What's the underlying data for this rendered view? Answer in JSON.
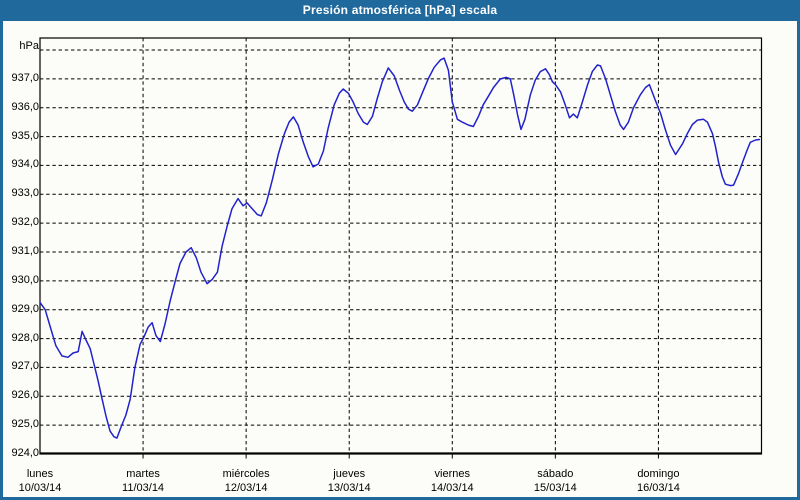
{
  "window": {
    "title": "Presión atmosférica [hPa] escala"
  },
  "colors": {
    "chrome_blue": "#1f699c",
    "page_background": "#fcfdf8",
    "line_blue": "#2222cc",
    "grid_black": "#000000",
    "text_black": "#000000"
  },
  "chart_data": {
    "type": "line",
    "title": "Presión atmosférica [hPa] escala",
    "ylabel": "hPa",
    "grid": "dashed",
    "legend": "none",
    "y_axis": {
      "min": 924,
      "max": 938,
      "gridline_step": 1,
      "unit_label": "hPa",
      "labeled_ticks": [
        "937,0",
        "936,0",
        "935,0",
        "934,0",
        "933,0",
        "932,0",
        "931,0",
        "930,0",
        "929,0",
        "928,0",
        "927,0",
        "926,0",
        "925,0",
        "924,0"
      ]
    },
    "x_axis": {
      "span_hours": 168,
      "hours_origin": "lunes 10/03/14 00:00",
      "days": [
        {
          "name": "lunes",
          "date": "10/03/14"
        },
        {
          "name": "martes",
          "date": "11/03/14"
        },
        {
          "name": "miércoles",
          "date": "12/03/14"
        },
        {
          "name": "jueves",
          "date": "13/03/14"
        },
        {
          "name": "viernes",
          "date": "14/03/14"
        },
        {
          "name": "sábado",
          "date": "15/03/14"
        },
        {
          "name": "domingo",
          "date": "16/03/14"
        }
      ]
    },
    "series": [
      {
        "name": "Presión atmosférica [hPa]",
        "color": "#2222cc",
        "points_hours_hpa": [
          [
            0.0,
            929.25
          ],
          [
            1.2,
            929.0
          ],
          [
            2.3,
            928.45
          ],
          [
            3.7,
            927.75
          ],
          [
            5.1,
            927.4
          ],
          [
            6.5,
            927.35
          ],
          [
            7.7,
            927.5
          ],
          [
            8.9,
            927.55
          ],
          [
            9.8,
            928.25
          ],
          [
            10.7,
            927.95
          ],
          [
            11.7,
            927.65
          ],
          [
            12.6,
            927.1
          ],
          [
            13.5,
            926.55
          ],
          [
            14.4,
            925.95
          ],
          [
            15.4,
            925.3
          ],
          [
            16.3,
            924.8
          ],
          [
            17.2,
            924.6
          ],
          [
            17.9,
            924.55
          ],
          [
            18.9,
            924.95
          ],
          [
            20.0,
            925.35
          ],
          [
            21.0,
            925.9
          ],
          [
            22.1,
            927.0
          ],
          [
            23.3,
            927.8
          ],
          [
            24.2,
            928.05
          ],
          [
            25.2,
            928.4
          ],
          [
            26.1,
            928.55
          ],
          [
            27.0,
            928.1
          ],
          [
            28.0,
            927.9
          ],
          [
            29.1,
            928.5
          ],
          [
            30.3,
            929.3
          ],
          [
            31.5,
            930.0
          ],
          [
            32.6,
            930.6
          ],
          [
            34.0,
            931.0
          ],
          [
            35.2,
            931.15
          ],
          [
            36.4,
            930.8
          ],
          [
            37.5,
            930.3
          ],
          [
            38.9,
            929.9
          ],
          [
            40.1,
            930.05
          ],
          [
            41.3,
            930.3
          ],
          [
            42.4,
            931.2
          ],
          [
            43.6,
            931.9
          ],
          [
            44.7,
            932.5
          ],
          [
            46.1,
            932.85
          ],
          [
            47.3,
            932.6
          ],
          [
            48.2,
            932.7
          ],
          [
            49.4,
            932.5
          ],
          [
            50.6,
            932.3
          ],
          [
            51.5,
            932.25
          ],
          [
            52.7,
            932.7
          ],
          [
            54.1,
            933.5
          ],
          [
            55.5,
            934.4
          ],
          [
            56.9,
            935.1
          ],
          [
            58.0,
            935.5
          ],
          [
            59.0,
            935.68
          ],
          [
            60.1,
            935.4
          ],
          [
            61.3,
            934.8
          ],
          [
            62.5,
            934.3
          ],
          [
            63.6,
            933.95
          ],
          [
            64.8,
            934.05
          ],
          [
            66.0,
            934.5
          ],
          [
            67.1,
            935.3
          ],
          [
            68.5,
            936.1
          ],
          [
            69.7,
            936.5
          ],
          [
            70.6,
            936.65
          ],
          [
            71.8,
            936.5
          ],
          [
            72.9,
            936.2
          ],
          [
            74.1,
            935.8
          ],
          [
            75.3,
            935.5
          ],
          [
            76.2,
            935.42
          ],
          [
            77.4,
            935.7
          ],
          [
            78.5,
            936.3
          ],
          [
            79.7,
            936.9
          ],
          [
            81.1,
            937.38
          ],
          [
            82.5,
            937.1
          ],
          [
            83.7,
            936.6
          ],
          [
            84.8,
            936.2
          ],
          [
            85.8,
            935.95
          ],
          [
            86.7,
            935.88
          ],
          [
            87.9,
            936.1
          ],
          [
            89.0,
            936.5
          ],
          [
            90.4,
            937.0
          ],
          [
            91.8,
            937.4
          ],
          [
            93.2,
            937.65
          ],
          [
            94.1,
            937.72
          ],
          [
            95.1,
            937.3
          ],
          [
            96.0,
            936.2
          ],
          [
            97.2,
            935.6
          ],
          [
            98.3,
            935.5
          ],
          [
            99.7,
            935.4
          ],
          [
            100.9,
            935.35
          ],
          [
            102.1,
            935.7
          ],
          [
            103.2,
            936.1
          ],
          [
            104.4,
            936.4
          ],
          [
            105.6,
            936.7
          ],
          [
            107.2,
            937.0
          ],
          [
            108.6,
            937.05
          ],
          [
            109.5,
            937.0
          ],
          [
            110.3,
            936.45
          ],
          [
            111.2,
            935.75
          ],
          [
            112.0,
            935.25
          ],
          [
            112.9,
            935.6
          ],
          [
            114.2,
            936.45
          ],
          [
            115.3,
            936.95
          ],
          [
            116.5,
            937.25
          ],
          [
            117.7,
            937.35
          ],
          [
            118.6,
            937.15
          ],
          [
            119.3,
            936.9
          ],
          [
            120.0,
            936.8
          ],
          [
            121.2,
            936.55
          ],
          [
            122.3,
            936.1
          ],
          [
            123.3,
            935.65
          ],
          [
            124.2,
            935.78
          ],
          [
            125.1,
            935.65
          ],
          [
            126.3,
            936.2
          ],
          [
            127.5,
            936.8
          ],
          [
            128.6,
            937.25
          ],
          [
            129.8,
            937.48
          ],
          [
            130.5,
            937.45
          ],
          [
            131.7,
            937.0
          ],
          [
            132.8,
            936.45
          ],
          [
            134.0,
            935.85
          ],
          [
            135.1,
            935.4
          ],
          [
            135.9,
            935.25
          ],
          [
            137.0,
            935.5
          ],
          [
            138.2,
            936.0
          ],
          [
            139.8,
            936.45
          ],
          [
            141.0,
            936.7
          ],
          [
            141.9,
            936.8
          ],
          [
            143.3,
            936.25
          ],
          [
            144.5,
            935.8
          ],
          [
            145.6,
            935.25
          ],
          [
            146.8,
            934.7
          ],
          [
            148.0,
            934.38
          ],
          [
            149.6,
            934.75
          ],
          [
            150.8,
            935.12
          ],
          [
            151.9,
            935.42
          ],
          [
            153.1,
            935.57
          ],
          [
            154.5,
            935.6
          ],
          [
            155.4,
            935.5
          ],
          [
            156.6,
            935.1
          ],
          [
            157.3,
            934.65
          ],
          [
            158.0,
            934.1
          ],
          [
            158.9,
            933.6
          ],
          [
            159.6,
            933.35
          ],
          [
            160.8,
            933.3
          ],
          [
            161.5,
            933.32
          ],
          [
            162.6,
            933.7
          ],
          [
            163.8,
            934.2
          ],
          [
            164.7,
            934.55
          ],
          [
            165.4,
            934.8
          ],
          [
            166.6,
            934.88
          ],
          [
            167.5,
            934.9
          ]
        ]
      }
    ]
  }
}
